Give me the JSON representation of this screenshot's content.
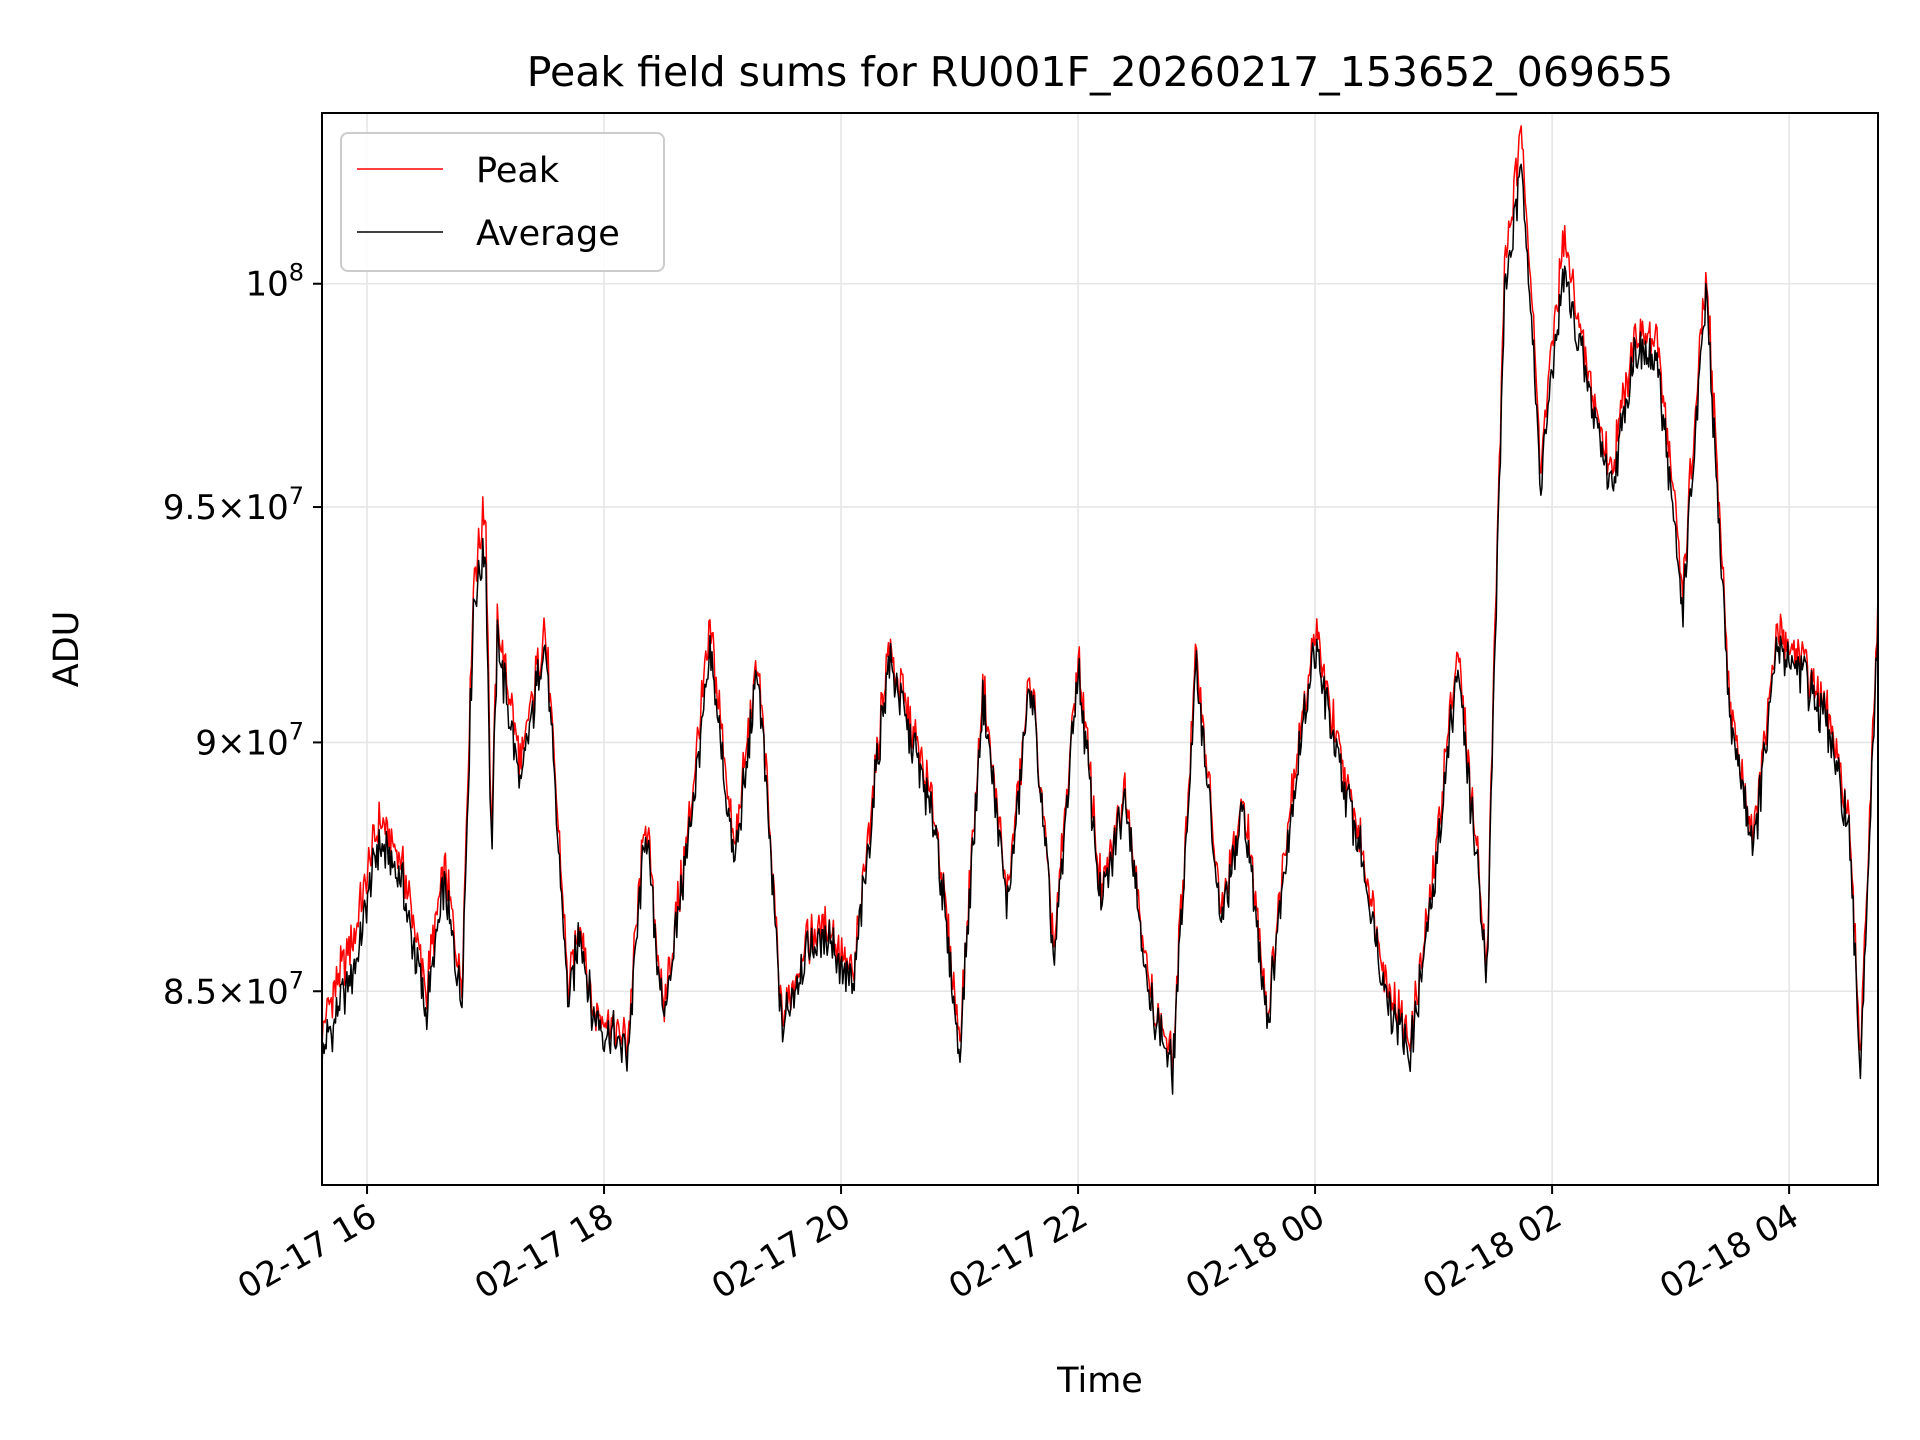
{
  "chart_data": {
    "type": "line",
    "title": "Peak field sums for RU001F_20260217_153652_069655",
    "xlabel": "Time",
    "ylabel": "ADU",
    "yscale": "log",
    "xlim_hours": [
      15.62,
      4.75
    ],
    "ylim": [
      81300000,
      104000000
    ],
    "grid": true,
    "legend_position": "upper-left",
    "x_ticks": [
      {
        "hour": 16,
        "label": "02-17 16"
      },
      {
        "hour": 18,
        "label": "02-17 18"
      },
      {
        "hour": 20,
        "label": "02-17 20"
      },
      {
        "hour": 22,
        "label": "02-17 22"
      },
      {
        "hour": 24,
        "label": "02-18 00"
      },
      {
        "hour": 26,
        "label": "02-18 02"
      },
      {
        "hour": 28,
        "label": "02-18 04"
      }
    ],
    "y_ticks": [
      {
        "value": 85000000,
        "mantissa": "8.5",
        "label": "8.5 × 10^7"
      },
      {
        "value": 90000000,
        "mantissa": "9",
        "label": "9 × 10^7"
      },
      {
        "value": 95000000,
        "mantissa": "9.5",
        "label": "9.5 × 10^7"
      },
      {
        "value": 100000000,
        "mantissa": "",
        "label": "10^8"
      }
    ],
    "x_hours": [
      15.62,
      15.9,
      16.1,
      16.3,
      16.5,
      16.65,
      16.8,
      16.9,
      17.0,
      17.05,
      17.1,
      17.3,
      17.5,
      17.7,
      17.8,
      17.9,
      18.2,
      18.35,
      18.5,
      18.7,
      18.9,
      19.1,
      19.3,
      19.5,
      19.7,
      19.9,
      20.1,
      20.4,
      20.6,
      20.8,
      21.0,
      21.2,
      21.4,
      21.6,
      21.8,
      22.0,
      22.2,
      22.4,
      22.6,
      22.8,
      23.0,
      23.2,
      23.4,
      23.6,
      23.8,
      24.0,
      24.2,
      24.4,
      24.6,
      24.8,
      25.0,
      25.2,
      25.45,
      25.6,
      25.75,
      25.9,
      26.1,
      26.3,
      26.5,
      26.7,
      26.9,
      27.1,
      27.3,
      27.5,
      27.7,
      27.9,
      28.1,
      28.3,
      28.5,
      28.6,
      28.75
    ],
    "series": [
      {
        "name": "Peak",
        "color": "#ff0000",
        "values": [
          84300000,
          86200000,
          88400000,
          87500000,
          85000000,
          87500000,
          85200000,
          93500000,
          95000000,
          88000000,
          92500000,
          89500000,
          92500000,
          85000000,
          86500000,
          84700000,
          84000000,
          88500000,
          84600000,
          88000000,
          92400000,
          87800000,
          91800000,
          84400000,
          86000000,
          86300000,
          85200000,
          92000000,
          90300000,
          88400000,
          84000000,
          91200000,
          86800000,
          91500000,
          85800000,
          91800000,
          86800000,
          89200000,
          85000000,
          83700000,
          91900000,
          86500000,
          88800000,
          84600000,
          89000000,
          92300000,
          89800000,
          87800000,
          85200000,
          84000000,
          87300000,
          92000000,
          85600000,
          100500000,
          103600000,
          96000000,
          101000000,
          98000000,
          95800000,
          99000000,
          98500000,
          93200000,
          100200000,
          90800000,
          88000000,
          92300000,
          91800000,
          90800000,
          88600000,
          83800000,
          92700000
        ]
      },
      {
        "name": "Average",
        "color": "#000000",
        "values": [
          83800000,
          85500000,
          88000000,
          87100000,
          84600000,
          87100000,
          84800000,
          93000000,
          94200000,
          87700000,
          92100000,
          89100000,
          92200000,
          84700000,
          86300000,
          84500000,
          83800000,
          88300000,
          84400000,
          87800000,
          91800000,
          87500000,
          91500000,
          84200000,
          85800000,
          86100000,
          85000000,
          91700000,
          90000000,
          88200000,
          83800000,
          91000000,
          86600000,
          91300000,
          85600000,
          91500000,
          86600000,
          89000000,
          84800000,
          83500000,
          91600000,
          86300000,
          88600000,
          84400000,
          88700000,
          92000000,
          89500000,
          87600000,
          84900000,
          83800000,
          87000000,
          91600000,
          85400000,
          99800000,
          102800000,
          95500000,
          100300000,
          97600000,
          95400000,
          98600000,
          98000000,
          92800000,
          99700000,
          90500000,
          87800000,
          92000000,
          91500000,
          90500000,
          88300000,
          83500000,
          92300000
        ]
      }
    ]
  }
}
